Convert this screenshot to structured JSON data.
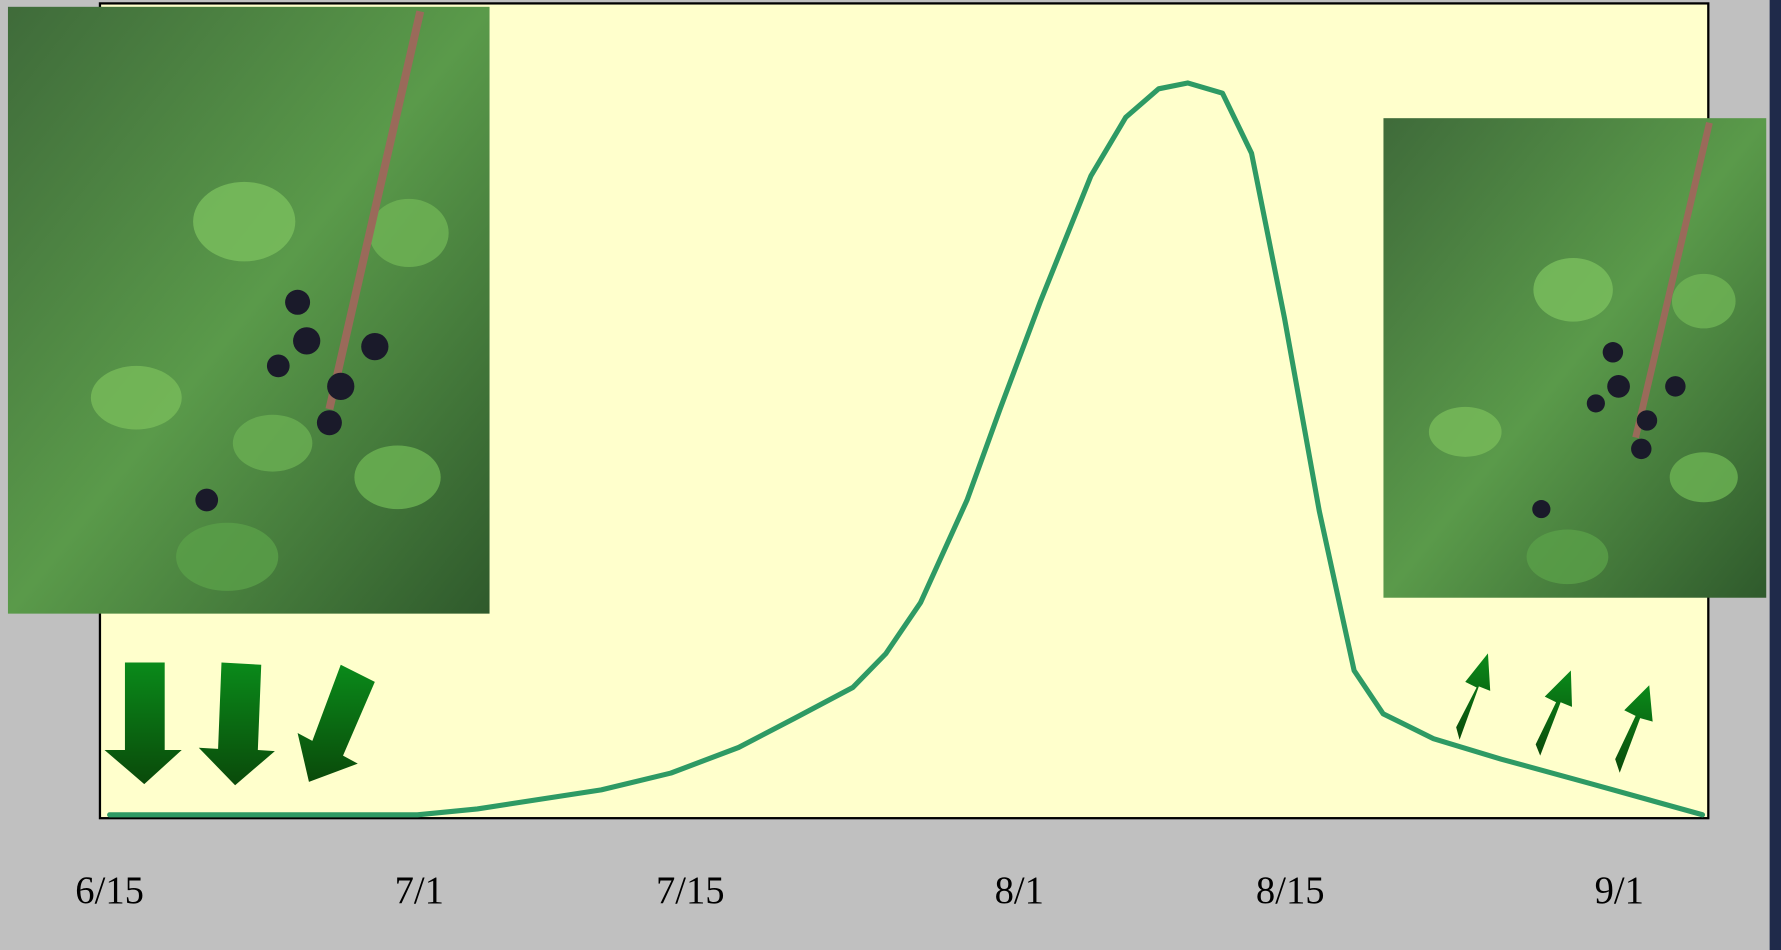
{
  "chart_data": {
    "type": "line",
    "x": [
      166,
      181.9,
      185,
      191.4,
      195,
      198.5,
      201.4,
      204.4,
      206.1,
      207.9,
      210.3,
      212,
      214.1,
      216.7,
      218.5,
      220.2,
      221.7,
      223.5,
      225,
      226.7,
      228.5,
      230.3,
      231.8,
      234.4,
      237.9,
      242.6,
      248.3
    ],
    "values": [
      0,
      0,
      0.8,
      3.4,
      5.7,
      9.2,
      13.2,
      17.4,
      22,
      29,
      43,
      55.4,
      70.2,
      87.3,
      95.3,
      99.2,
      100,
      98.6,
      90.4,
      67.9,
      41.5,
      19.7,
      13.8,
      10.4,
      7.6,
      4.2,
      0
    ],
    "color": "#2e9a64",
    "xlim": [
      165.5,
      248.6
    ],
    "xticks": [
      {
        "value": 166,
        "label": "6/15"
      },
      {
        "value": 182,
        "label": "7/1"
      },
      {
        "value": 196,
        "label": "7/15"
      },
      {
        "value": 213,
        "label": "8/1"
      },
      {
        "value": 227,
        "label": "8/15"
      },
      {
        "value": 244,
        "label": "9/1"
      }
    ],
    "ylim": [
      0,
      100
    ]
  }
}
